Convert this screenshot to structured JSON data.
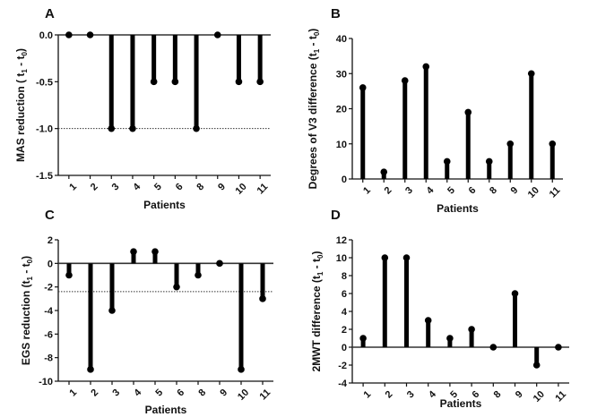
{
  "chart_data": [
    {
      "panel": "A",
      "type": "lollipop",
      "title": "",
      "xlabel": "Patients",
      "ylabel": "MAS reduction ( t1 - t0)",
      "ylabel_main": "MAS reduction ( t",
      "ylabel_sub1": "1",
      "ylabel_mid": " - t",
      "ylabel_sub0": "0",
      "ylabel_end": ")",
      "categories": [
        "1",
        "2",
        "3",
        "4",
        "5",
        "6",
        "8",
        "9",
        "10",
        "11"
      ],
      "values": [
        0,
        0,
        -1,
        -1,
        -0.5,
        -0.5,
        -1,
        0,
        -0.5,
        -0.5
      ],
      "ylim": [
        -1.5,
        0
      ],
      "yticks": [
        0.0,
        -0.5,
        -1.0,
        -1.5
      ],
      "ytick_labels": [
        "0.0",
        "-0.5",
        "-1.0",
        "-1.5"
      ],
      "baseline": 0,
      "reference_line": -1.0,
      "grid": false
    },
    {
      "panel": "B",
      "type": "lollipop",
      "title": "",
      "xlabel": "Patients",
      "ylabel": "Degrees of V3 difference  (t1 - t0)",
      "ylabel_main": "Degrees of V3 difference  (t",
      "ylabel_sub1": "1",
      "ylabel_mid": " - t",
      "ylabel_sub0": "0",
      "ylabel_end": ")",
      "categories": [
        "1",
        "2",
        "3",
        "4",
        "5",
        "6",
        "8",
        "9",
        "10",
        "11"
      ],
      "values": [
        26,
        2,
        28,
        32,
        5,
        19,
        5,
        10,
        30,
        10
      ],
      "ylim": [
        0,
        40
      ],
      "yticks": [
        0,
        10,
        20,
        30,
        40
      ],
      "ytick_labels": [
        "0",
        "10",
        "20",
        "30",
        "40"
      ],
      "baseline": 0,
      "reference_line": null,
      "grid": false
    },
    {
      "panel": "C",
      "type": "lollipop",
      "title": "",
      "xlabel": "Patients",
      "ylabel": "EGS  reduction (t1 - t0)",
      "ylabel_main": "EGS  reduction (t",
      "ylabel_sub1": "1",
      "ylabel_mid": " - t",
      "ylabel_sub0": "0",
      "ylabel_end": ")",
      "categories": [
        "1",
        "2",
        "3",
        "4",
        "5",
        "6",
        "8",
        "9",
        "10",
        "11"
      ],
      "values": [
        -1,
        -9,
        -4,
        1,
        1,
        -2,
        -1,
        0,
        -9,
        -3
      ],
      "ylim": [
        -10,
        2
      ],
      "yticks": [
        2,
        0,
        -2,
        -4,
        -6,
        -8,
        -10
      ],
      "ytick_labels": [
        "2",
        "0",
        "-2",
        "-4",
        "-6",
        "-8",
        "-10"
      ],
      "baseline": 0,
      "reference_line": -2.4,
      "grid": false
    },
    {
      "panel": "D",
      "type": "lollipop",
      "title": "",
      "xlabel": "Patients",
      "ylabel": "2MWT difference (t1 - t0)",
      "ylabel_main": "2MWT difference (t",
      "ylabel_sub1": "1",
      "ylabel_mid": " - t",
      "ylabel_sub0": "0",
      "ylabel_end": ")",
      "categories": [
        "1",
        "2",
        "3",
        "4",
        "5",
        "6",
        "8",
        "9",
        "10",
        "11"
      ],
      "values": [
        1,
        10,
        10,
        3,
        1,
        2,
        0,
        6,
        -2,
        0
      ],
      "ylim": [
        -4,
        12
      ],
      "yticks": [
        12,
        10,
        8,
        6,
        4,
        2,
        0,
        -2,
        -4
      ],
      "ytick_labels": [
        "12",
        "10",
        "8",
        "6",
        "4",
        "2",
        "0",
        "-2",
        "-4"
      ],
      "baseline": 0,
      "reference_line": null,
      "grid": false
    }
  ],
  "colors": {
    "stem": "#000000",
    "axis": "#111111",
    "baseline": "#333333",
    "reference_line": "#333333"
  }
}
